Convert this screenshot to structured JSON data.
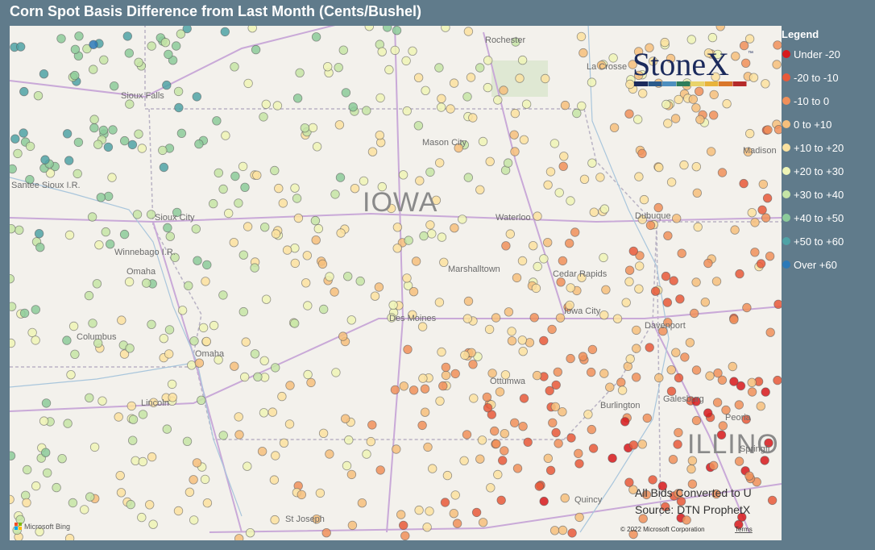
{
  "header": {
    "title": "Corn Spot Basis Difference from Last Month (Cents/Bushel)"
  },
  "legend": {
    "title": "Legend",
    "items": [
      {
        "label": "Under -20",
        "color": "#d7191c"
      },
      {
        "label": "-20 to -10",
        "color": "#e8593a"
      },
      {
        "label": "-10 to 0",
        "color": "#f0905a"
      },
      {
        "label": "0 to +10",
        "color": "#f6bf7c"
      },
      {
        "label": "+10 to +20",
        "color": "#fbe2a0"
      },
      {
        "label": "+20 to +30",
        "color": "#eef4b6"
      },
      {
        "label": "+30 to +40",
        "color": "#c6e5a6"
      },
      {
        "label": "+40 to +50",
        "color": "#8ccb9a"
      },
      {
        "label": "+50 to +60",
        "color": "#4fa3a6"
      },
      {
        "label": "Over +60",
        "color": "#2b79b8"
      }
    ]
  },
  "map": {
    "labels": [
      "Rochester",
      "La Crosse",
      "Sioux Falls",
      "Mason City",
      "IOWA",
      "Waterloo",
      "Dubuque",
      "Madison",
      "Santee Sioux I.R.",
      "Sioux City",
      "Winnebago I.R.",
      "Omaha",
      "Marshalltown",
      "Cedar Rapids",
      "Iowa City",
      "Davenport",
      "Des Moines",
      "Columbus",
      "Omaha",
      "Ottumwa",
      "Burlington",
      "Galesburg",
      "Peoria",
      "ILLINO",
      "Lincoln",
      "Quincy",
      "St Joseph",
      "Springfi"
    ],
    "attribution": "Microsoft Bing",
    "copyright": "© 2022 Microsoft Corporation",
    "terms": "Terms"
  },
  "notes": [
    "All Bids Converted to U",
    "Source: DTN ProphetX"
  ],
  "logo": {
    "text": "StoneX",
    "mark": "™"
  }
}
